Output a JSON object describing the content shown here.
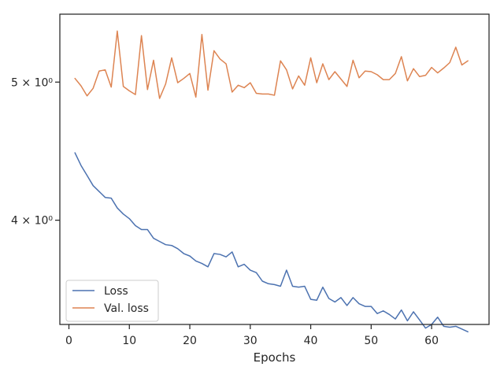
{
  "chart_data": {
    "type": "line",
    "title": "",
    "xlabel": "Epochs",
    "ylabel": "",
    "yscale": "log",
    "xlim": [
      -1.5,
      69.5
    ],
    "ylim": [
      3.38,
      5.58
    ],
    "xticks": [
      0,
      10,
      20,
      30,
      40,
      50,
      60
    ],
    "yticks": [
      4,
      5
    ],
    "ytick_labels": [
      "4 × 10⁰",
      "5 × 10⁰"
    ],
    "grid": false,
    "legend_position": "lower-left",
    "x": [
      1,
      2,
      3,
      4,
      5,
      6,
      7,
      8,
      9,
      10,
      11,
      12,
      13,
      14,
      15,
      16,
      17,
      18,
      19,
      20,
      21,
      22,
      23,
      24,
      25,
      26,
      27,
      28,
      29,
      30,
      31,
      32,
      33,
      34,
      35,
      36,
      37,
      38,
      39,
      40,
      41,
      42,
      43,
      44,
      45,
      46,
      47,
      48,
      49,
      50,
      51,
      52,
      53,
      54,
      55,
      56,
      57,
      58,
      59,
      60,
      61,
      62,
      63,
      64,
      65,
      66
    ],
    "series": [
      {
        "name": "Loss",
        "color": "#4c72b0",
        "values": [
          4.46,
          4.37,
          4.3,
          4.23,
          4.19,
          4.15,
          4.145,
          4.08,
          4.04,
          4.01,
          3.965,
          3.94,
          3.94,
          3.885,
          3.865,
          3.845,
          3.84,
          3.82,
          3.79,
          3.775,
          3.745,
          3.73,
          3.71,
          3.79,
          3.785,
          3.77,
          3.8,
          3.71,
          3.725,
          3.69,
          3.675,
          3.625,
          3.61,
          3.605,
          3.595,
          3.69,
          3.595,
          3.59,
          3.595,
          3.52,
          3.515,
          3.59,
          3.525,
          3.505,
          3.53,
          3.485,
          3.53,
          3.495,
          3.48,
          3.48,
          3.44,
          3.455,
          3.435,
          3.41,
          3.46,
          3.4,
          3.45,
          3.405,
          3.36,
          3.38,
          3.42,
          3.37,
          3.365,
          3.37,
          3.355,
          3.34
        ]
      },
      {
        "name": "Val. loss",
        "color": "#dd8452",
        "values": [
          5.03,
          4.97,
          4.89,
          4.95,
          5.09,
          5.1,
          4.96,
          5.43,
          4.965,
          4.93,
          4.9,
          5.39,
          4.94,
          5.18,
          4.87,
          4.985,
          5.2,
          4.995,
          5.03,
          5.07,
          4.88,
          5.4,
          4.935,
          5.26,
          5.19,
          5.15,
          4.92,
          4.975,
          4.955,
          4.995,
          4.91,
          4.905,
          4.905,
          4.895,
          5.175,
          5.1,
          4.945,
          5.05,
          4.975,
          5.2,
          4.995,
          5.15,
          5.02,
          5.085,
          5.025,
          4.965,
          5.18,
          5.035,
          5.09,
          5.085,
          5.06,
          5.02,
          5.02,
          5.07,
          5.21,
          5.01,
          5.11,
          5.045,
          5.055,
          5.12,
          5.075,
          5.115,
          5.16,
          5.29,
          5.14,
          5.175
        ]
      }
    ]
  }
}
